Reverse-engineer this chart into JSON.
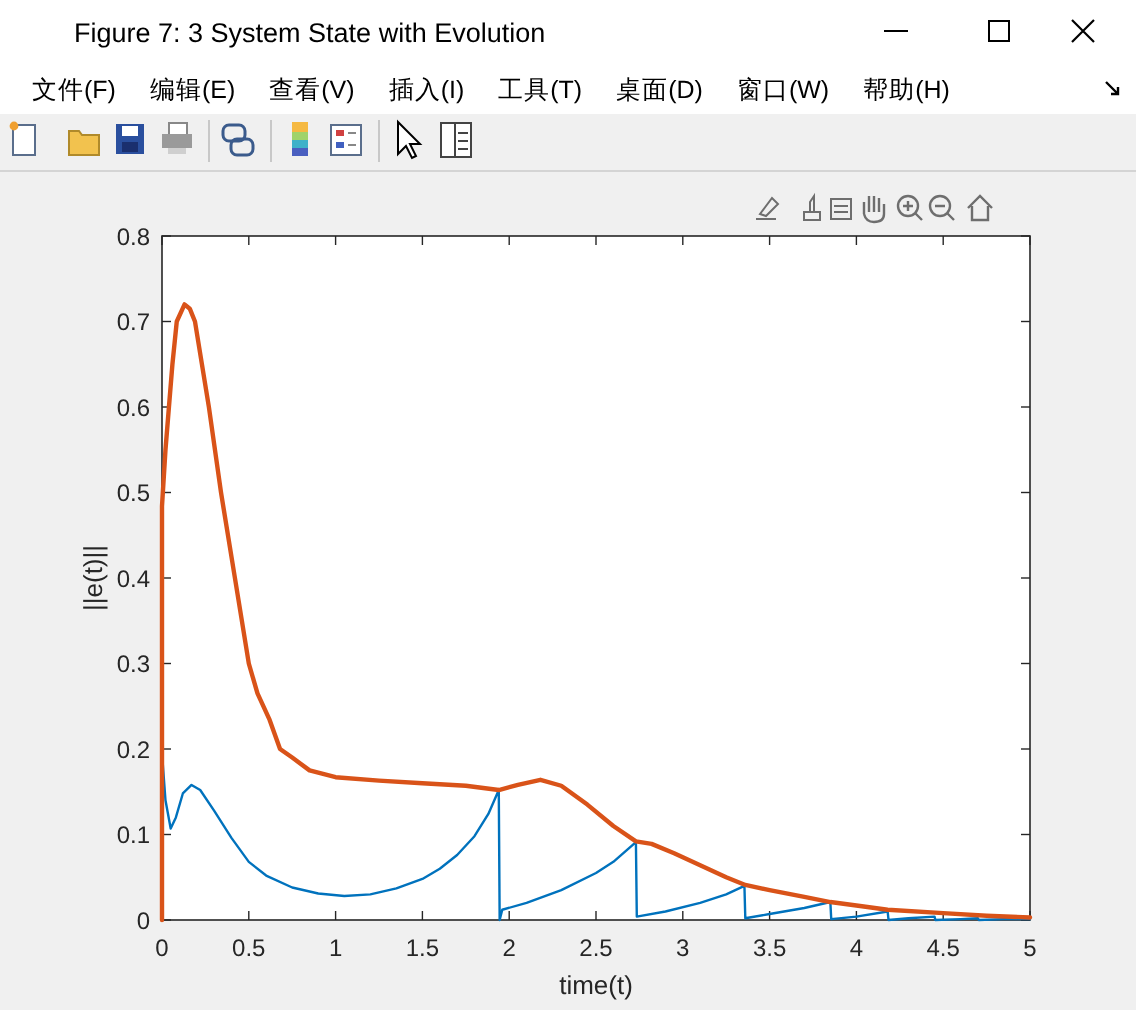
{
  "chart_data": {
    "type": "line",
    "title": "Figure 7: 3 System State with Evolution",
    "annotations": [
      "文件(F)",
      "编辑(E)",
      "查看(V)",
      "插入(I)",
      "工具(T)",
      "桌面(D)",
      "窗口(W)",
      "帮助(H)"
    ],
    "xlabel": "time(t)",
    "ylabel": "||e(t)||",
    "xlim": [
      0,
      5
    ],
    "ylim": [
      0,
      0.8
    ],
    "xticks": [
      0,
      0.5,
      1,
      1.5,
      2,
      2.5,
      3,
      3.5,
      4,
      4.5,
      5
    ],
    "yticks": [
      0,
      0.1,
      0.2,
      0.3,
      0.4,
      0.5,
      0.6,
      0.7,
      0.8
    ],
    "series": [
      {
        "color": "#0072bd",
        "x": [
          0,
          0.02,
          0.05,
          0.08,
          0.12,
          0.17,
          0.22,
          0.3,
          0.4,
          0.5,
          0.6,
          0.75,
          0.9,
          1.05,
          1.2,
          1.35,
          1.5,
          1.6,
          1.7,
          1.8,
          1.88,
          1.94,
          1.945,
          1.96,
          2.1,
          2.3,
          2.5,
          2.6,
          2.73,
          2.735,
          2.9,
          3.1,
          3.25,
          3.355,
          3.36,
          3.5,
          3.7,
          3.85,
          3.855,
          4.0,
          4.18,
          4.185,
          4.3,
          4.45,
          4.455,
          4.6,
          4.7,
          4.705,
          4.85,
          5
        ],
        "values": [
          0.195,
          0.14,
          0.107,
          0.12,
          0.148,
          0.158,
          0.152,
          0.128,
          0.096,
          0.068,
          0.052,
          0.038,
          0.031,
          0.028,
          0.03,
          0.037,
          0.048,
          0.06,
          0.076,
          0.098,
          0.124,
          0.152,
          0,
          0.012,
          0.02,
          0.035,
          0.055,
          0.068,
          0.091,
          0.004,
          0.01,
          0.02,
          0.03,
          0.04,
          0.002,
          0.007,
          0.014,
          0.021,
          0.001,
          0.004,
          0.01,
          0,
          0.002,
          0.004,
          0,
          0.001,
          0.002,
          0,
          0.001,
          0.001
        ]
      },
      {
        "color": "#d95319",
        "x": [
          0,
          0,
          0.02,
          0.04,
          0.06,
          0.085,
          0.13,
          0.16,
          0.19,
          0.23,
          0.27,
          0.34,
          0.42,
          0.5,
          0.55,
          0.62,
          0.68,
          0.75,
          0.85,
          1.0,
          1.25,
          1.5,
          1.75,
          1.94,
          2.05,
          2.18,
          2.3,
          2.45,
          2.6,
          2.73,
          2.82,
          2.95,
          3.1,
          3.25,
          3.36,
          3.5,
          3.7,
          3.85,
          4.0,
          4.18,
          4.5,
          4.75,
          5
        ],
        "values": [
          0,
          0.484,
          0.55,
          0.6,
          0.65,
          0.7,
          0.72,
          0.715,
          0.7,
          0.65,
          0.6,
          0.5,
          0.4,
          0.3,
          0.265,
          0.234,
          0.2,
          0.19,
          0.175,
          0.167,
          0.163,
          0.16,
          0.157,
          0.152,
          0.158,
          0.164,
          0.157,
          0.135,
          0.11,
          0.092,
          0.089,
          0.078,
          0.064,
          0.05,
          0.041,
          0.035,
          0.027,
          0.021,
          0.017,
          0.012,
          0.008,
          0.005,
          0.003
        ]
      }
    ]
  }
}
